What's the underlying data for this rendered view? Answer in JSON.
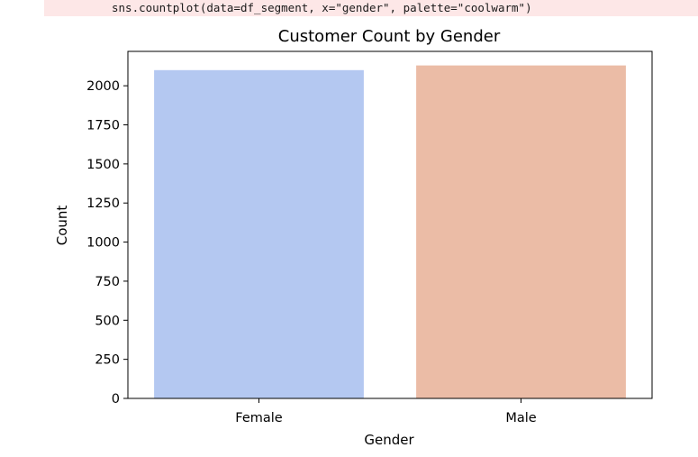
{
  "code": {
    "text": "sns.countplot(data=df_segment, x=\"gender\", palette=\"coolwarm\")"
  },
  "chart_data": {
    "type": "bar",
    "title": "Customer Count by Gender",
    "xlabel": "Gender",
    "ylabel": "Count",
    "categories": [
      "Female",
      "Male"
    ],
    "values": [
      2100,
      2130
    ],
    "colors": [
      "#b4c8f1",
      "#ebbca6"
    ],
    "ylim": [
      0,
      2220
    ],
    "yticks": [
      0,
      250,
      500,
      750,
      1000,
      1250,
      1500,
      1750,
      2000
    ],
    "grid": false,
    "legend": "none"
  }
}
